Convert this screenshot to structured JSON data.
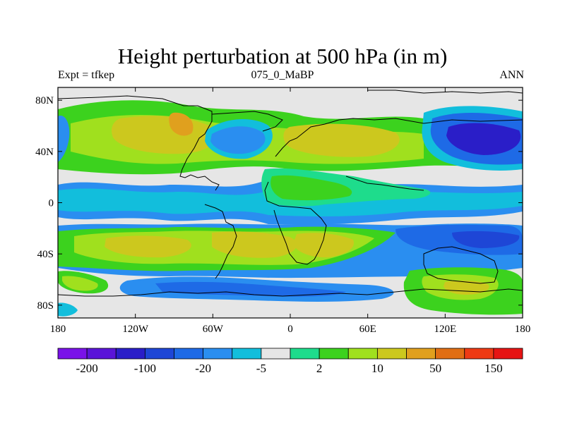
{
  "title": "Height perturbation at 500 hPa (in m)",
  "subtitle_left": "Expt = tfkep",
  "subtitle_center": "075_0_MaBP",
  "subtitle_right": "ANN",
  "chart_data": {
    "type": "heatmap",
    "title": "Height perturbation at 500 hPa (in m)",
    "xlim": [
      -180,
      180
    ],
    "ylim": [
      -90,
      90
    ],
    "x_ticks": [
      {
        "value": -180,
        "label": "180"
      },
      {
        "value": -120,
        "label": "120W"
      },
      {
        "value": -60,
        "label": "60W"
      },
      {
        "value": 0,
        "label": "0"
      },
      {
        "value": 60,
        "label": "60E"
      },
      {
        "value": 120,
        "label": "120E"
      },
      {
        "value": 180,
        "label": "180"
      }
    ],
    "y_ticks": [
      {
        "value": 80,
        "label": "80N"
      },
      {
        "value": 40,
        "label": "40N"
      },
      {
        "value": 0,
        "label": "0"
      },
      {
        "value": -40,
        "label": "40S"
      },
      {
        "value": -80,
        "label": "80S"
      }
    ],
    "colorbar": {
      "colors": [
        "#7a12e8",
        "#5a14d8",
        "#2a1ec8",
        "#1e46d6",
        "#1e6ae6",
        "#2a8ef0",
        "#12bedc",
        "#e6e6e6",
        "#1edc8c",
        "#3cd21e",
        "#a0e01e",
        "#ccc81e",
        "#e0a01e",
        "#e06e14",
        "#ee3a14",
        "#e61414"
      ],
      "labels": [
        {
          "boundary": 1,
          "text": "-200"
        },
        {
          "boundary": 3,
          "text": "-100"
        },
        {
          "boundary": 5,
          "text": "-20"
        },
        {
          "boundary": 7,
          "text": "-5"
        },
        {
          "boundary": 9,
          "text": "2"
        },
        {
          "boundary": 11,
          "text": "10"
        },
        {
          "boundary": 13,
          "text": "50"
        },
        {
          "boundary": 15,
          "text": "150"
        }
      ]
    }
  }
}
